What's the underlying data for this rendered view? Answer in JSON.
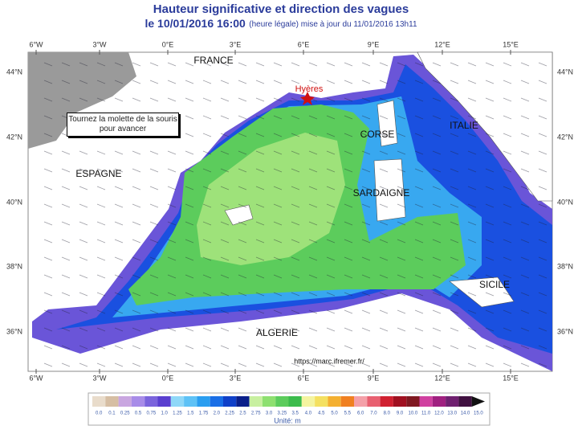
{
  "header": {
    "title": "Hauteur significative et direction des vagues",
    "date": "le 10/01/2016 16:00",
    "update": "(heure légale) mise à jour du 11/01/2016 13h11"
  },
  "map": {
    "lon_labels": [
      "6°W",
      "3°W",
      "0°E",
      "3°E",
      "6°E",
      "9°E",
      "12°E",
      "15°E"
    ],
    "lat_labels": [
      "44°N",
      "42°N",
      "40°N",
      "38°N",
      "36°N"
    ],
    "places": {
      "france": "FRANCE",
      "hyeres": "Hyères",
      "corse": "CORSE",
      "italie": "ITALIE",
      "espagne": "ESPAGNE",
      "sardaigne": "SARDAIGNE",
      "sicile": "SICILE",
      "algerie": "ALGERIE"
    },
    "source": "https://marc.ifremer.fr/",
    "tooltip": "Tournez la molette de la souris pour avancer"
  },
  "legend": {
    "unit": "Unité: m",
    "items": [
      {
        "label": "0.0",
        "color": "#e9dccb"
      },
      {
        "label": "0.1",
        "color": "#d6bea3"
      },
      {
        "label": "0.25",
        "color": "#c9a6e0"
      },
      {
        "label": "0.5",
        "color": "#a88ce8"
      },
      {
        "label": "0.75",
        "color": "#7b64dc"
      },
      {
        "label": "1.0",
        "color": "#5a3fcf"
      },
      {
        "label": "1.25",
        "color": "#8fd8f8"
      },
      {
        "label": "1.5",
        "color": "#5ec2f6"
      },
      {
        "label": "1.75",
        "color": "#2a9ef0"
      },
      {
        "label": "2.0",
        "color": "#1a6fe6"
      },
      {
        "label": "2.25",
        "color": "#1040c8"
      },
      {
        "label": "2.5",
        "color": "#0a1f8a"
      },
      {
        "label": "2.75",
        "color": "#c8f0a0"
      },
      {
        "label": "3.0",
        "color": "#8ee070"
      },
      {
        "label": "3.25",
        "color": "#5ccc5c"
      },
      {
        "label": "3.5",
        "color": "#3cbc4c"
      },
      {
        "label": "4.0",
        "color": "#f4f4a0"
      },
      {
        "label": "4.5",
        "color": "#f4e060"
      },
      {
        "label": "5.0",
        "color": "#f4b030"
      },
      {
        "label": "5.5",
        "color": "#f08020"
      },
      {
        "label": "6.0",
        "color": "#f4a0a8"
      },
      {
        "label": "7.0",
        "color": "#e86070"
      },
      {
        "label": "8.0",
        "color": "#d02030"
      },
      {
        "label": "9.0",
        "color": "#a01020"
      },
      {
        "label": "10.0",
        "color": "#801820"
      },
      {
        "label": "11.0",
        "color": "#d040a0"
      },
      {
        "label": "12.0",
        "color": "#a02080"
      },
      {
        "label": "13.0",
        "color": "#702070"
      },
      {
        "label": "14.0",
        "color": "#401040"
      },
      {
        "label": "15.0",
        "color": "#111111"
      }
    ]
  }
}
